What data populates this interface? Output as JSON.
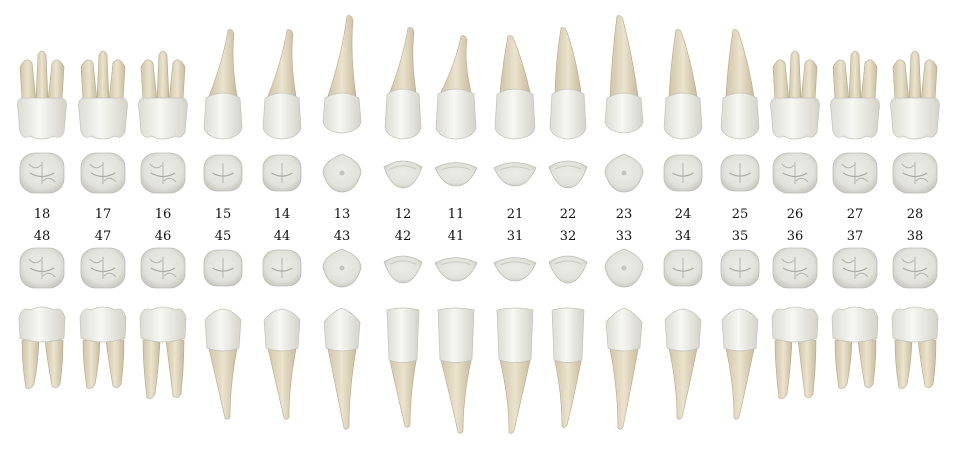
{
  "colors": {
    "enamel": "#f3f3ef",
    "enamel_shade": "#cfcfc8",
    "root": "#e6ddc6",
    "root_shade": "#bfb49a",
    "occlusal": "#e9e9e4",
    "occlusal_groove": "#b9b9b2",
    "label": "#111111"
  },
  "upper_row": {
    "numbers": [
      "18",
      "17",
      "16",
      "15",
      "14",
      "13",
      "12",
      "11",
      "21",
      "22",
      "23",
      "24",
      "25",
      "26",
      "27",
      "28"
    ],
    "types": [
      "molar",
      "molar",
      "molar",
      "premolar",
      "premolar",
      "canine",
      "lateral",
      "central",
      "central",
      "lateral",
      "canine",
      "premolar",
      "premolar",
      "molar",
      "molar",
      "molar"
    ]
  },
  "lower_row": {
    "numbers": [
      "48",
      "47",
      "46",
      "45",
      "44",
      "43",
      "42",
      "41",
      "31",
      "32",
      "33",
      "34",
      "35",
      "36",
      "37",
      "38"
    ],
    "types": [
      "molar",
      "molar",
      "molar",
      "premolar",
      "premolar",
      "canine",
      "lateral",
      "central",
      "central",
      "lateral",
      "canine",
      "premolar",
      "premolar",
      "molar",
      "molar",
      "molar"
    ]
  }
}
